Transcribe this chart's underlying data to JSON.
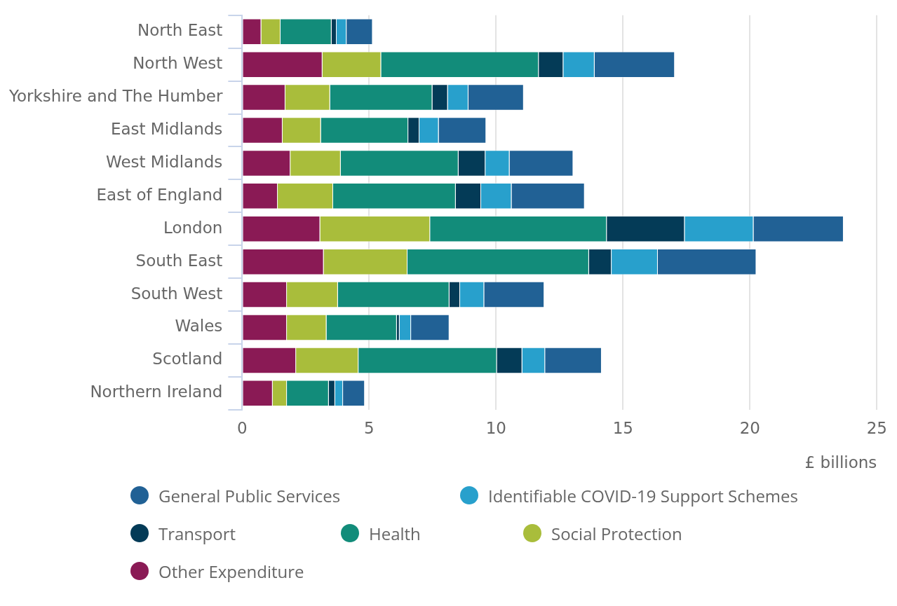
{
  "chart_data": {
    "type": "bar",
    "orientation": "horizontal",
    "stacked": true,
    "categories": [
      "North East",
      "North West",
      "Yorkshire and The Humber",
      "East Midlands",
      "West Midlands",
      "East of England",
      "London",
      "South East",
      "South West",
      "Wales",
      "Scotland",
      "Northern Ireland"
    ],
    "series": [
      {
        "name": "Other Expenditure",
        "color": "#8a1a55",
        "values": [
          0.75,
          3.16,
          1.7,
          1.59,
          1.9,
          1.4,
          3.07,
          3.21,
          1.76,
          1.76,
          2.12,
          1.2
        ]
      },
      {
        "name": "Social Protection",
        "color": "#a9bd3b",
        "values": [
          0.76,
          2.31,
          1.76,
          1.51,
          1.98,
          2.18,
          4.33,
          3.3,
          2.01,
          1.56,
          2.46,
          0.56
        ]
      },
      {
        "name": "Health",
        "color": "#128c7a",
        "values": [
          2.01,
          6.21,
          4.03,
          3.44,
          4.64,
          4.83,
          6.96,
          7.15,
          4.39,
          2.77,
          5.45,
          1.65
        ]
      },
      {
        "name": "Transport",
        "color": "#043b57",
        "values": [
          0.2,
          0.97,
          0.61,
          0.44,
          1.06,
          1.0,
          3.07,
          0.89,
          0.42,
          0.11,
          1.0,
          0.25
        ]
      },
      {
        "name": "Identifiable COVID-19 Support Schemes",
        "color": "#28a0cc",
        "values": [
          0.39,
          1.23,
          0.81,
          0.76,
          0.95,
          1.2,
          2.71,
          1.82,
          0.95,
          0.45,
          0.9,
          0.31
        ]
      },
      {
        "name": "General Public Services",
        "color": "#216195",
        "values": [
          1.03,
          3.16,
          2.18,
          1.87,
          2.51,
          2.88,
          3.55,
          3.88,
          2.37,
          1.51,
          2.23,
          0.86
        ]
      }
    ],
    "xlabel": "£ billions",
    "xlim": [
      0,
      25
    ],
    "xticks": [
      0,
      5,
      10,
      15,
      20,
      25
    ],
    "grid": "x",
    "legend": "bottom"
  }
}
